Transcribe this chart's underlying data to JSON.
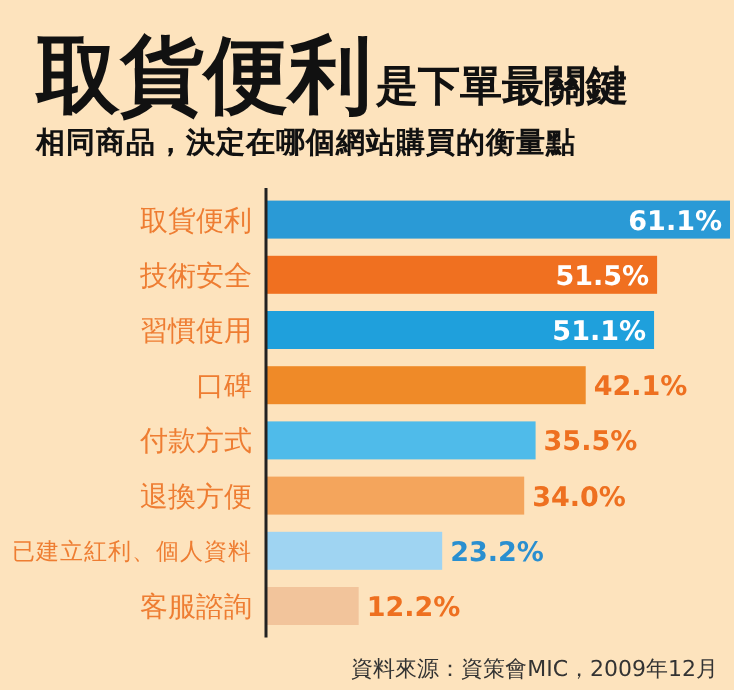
{
  "chart_data": {
    "type": "bar",
    "orientation": "horizontal",
    "title": "取貨便利",
    "subtitle": "是下單最關鍵",
    "annotations": [
      "相同商品，決定在哪個網站購買的衡量點",
      "資料來源：資策會MIC，2009年12月"
    ],
    "categories": [
      "取貨便利",
      "技術安全",
      "習慣使用",
      "口碑",
      "付款方式",
      "退換方便",
      "已建立紅利、個人資料",
      "客服諮詢"
    ],
    "values": [
      61.1,
      51.5,
      51.1,
      42.1,
      35.5,
      34.0,
      23.2,
      12.2
    ],
    "value_labels": [
      "61.1%",
      "51.5%",
      "51.1%",
      "42.1%",
      "35.5%",
      "34.0%",
      "23.2%",
      "12.2%"
    ],
    "colors": [
      "#2a9ad6",
      "#f07020",
      "#1fa0dc",
      "#ef8a28",
      "#4fbbea",
      "#f4a55c",
      "#9fd4f2",
      "#f2c49b"
    ]
  }
}
